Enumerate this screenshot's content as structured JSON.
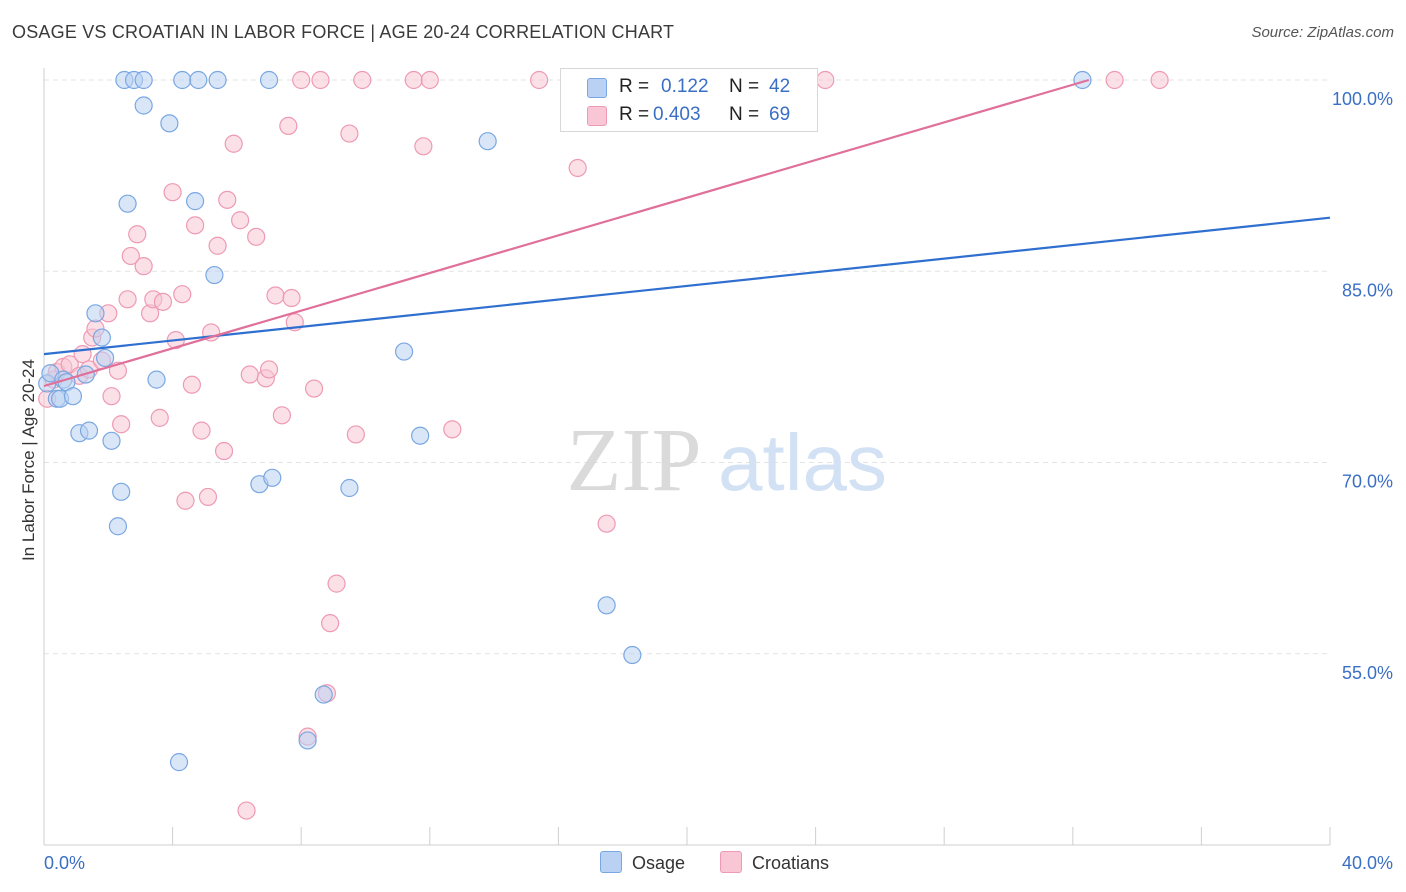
{
  "title": "OSAGE VS CROATIAN IN LABOR FORCE | AGE 20-24 CORRELATION CHART",
  "source": "Source: ZipAtlas.com",
  "watermark": "ZIPatlas",
  "colors": {
    "osage_fill": "#b9d2f3",
    "osage_stroke": "#7aa7e2",
    "osage_line": "#2f6fcf",
    "croatians_fill": "#f8c6d4",
    "croatians_stroke": "#ee9ab3",
    "croatians_line": "#e0709a",
    "tick_label": "#3b6fc4",
    "grid": "#e3e3e3"
  },
  "legend": {
    "r_label": "R =",
    "n_label": "N =",
    "osage": {
      "r": "0.122",
      "n": "42"
    },
    "croatians": {
      "r": "0.403",
      "n": "69"
    }
  },
  "bottom_legend": {
    "osage": "Osage",
    "croatians": "Croatians"
  },
  "chart_data": {
    "type": "scatter",
    "xlabel": "",
    "ylabel": "In Labor Force | Age 20-24",
    "xlim": [
      0.0,
      40.0
    ],
    "ylim": [
      40.0,
      100.0
    ],
    "x_tick_labels": [
      "0.0%",
      "40.0%"
    ],
    "y_ticks": [
      100.0,
      85.0,
      70.0,
      55.0
    ],
    "y_tick_labels": [
      "100.0%",
      "85.0%",
      "70.0%",
      "55.0%"
    ],
    "grid": true,
    "legend_position": "top-center",
    "series": [
      {
        "name": "Osage",
        "r": 0.122,
        "n": 42,
        "trend": {
          "x": [
            0.0,
            40.0
          ],
          "y": [
            78.5,
            89.2
          ]
        },
        "points": [
          [
            0.1,
            76.2
          ],
          [
            0.2,
            77.0
          ],
          [
            0.4,
            75.0
          ],
          [
            0.5,
            75.0
          ],
          [
            0.6,
            76.5
          ],
          [
            0.7,
            76.3
          ],
          [
            0.9,
            75.2
          ],
          [
            1.1,
            72.3
          ],
          [
            1.3,
            76.9
          ],
          [
            1.4,
            72.5
          ],
          [
            1.6,
            81.7
          ],
          [
            1.8,
            79.8
          ],
          [
            1.9,
            78.2
          ],
          [
            2.1,
            71.7
          ],
          [
            2.3,
            65.0
          ],
          [
            2.4,
            67.7
          ],
          [
            2.6,
            90.3
          ],
          [
            2.5,
            100.0
          ],
          [
            2.8,
            100.0
          ],
          [
            3.1,
            100.0
          ],
          [
            3.1,
            98.0
          ],
          [
            3.5,
            76.5
          ],
          [
            3.9,
            96.6
          ],
          [
            4.2,
            46.5
          ],
          [
            4.3,
            100.0
          ],
          [
            4.7,
            90.5
          ],
          [
            4.8,
            100.0
          ],
          [
            5.3,
            84.7
          ],
          [
            5.4,
            100.0
          ],
          [
            6.7,
            68.3
          ],
          [
            7.0,
            100.0
          ],
          [
            7.1,
            68.8
          ],
          [
            8.2,
            48.2
          ],
          [
            8.7,
            51.8
          ],
          [
            9.5,
            68.0
          ],
          [
            11.2,
            78.7
          ],
          [
            11.7,
            72.1
          ],
          [
            13.8,
            95.2
          ],
          [
            17.5,
            58.8
          ],
          [
            18.3,
            54.9
          ],
          [
            23.5,
            100.0
          ],
          [
            32.3,
            100.0
          ]
        ]
      },
      {
        "name": "Croatians",
        "r": 0.403,
        "n": 69,
        "trend": {
          "x": [
            0.0,
            32.5
          ],
          "y": [
            76.0,
            100.0
          ]
        },
        "points": [
          [
            0.1,
            75.0
          ],
          [
            0.3,
            76.5
          ],
          [
            0.4,
            77.1
          ],
          [
            0.6,
            77.5
          ],
          [
            0.8,
            77.7
          ],
          [
            1.1,
            76.8
          ],
          [
            1.2,
            78.5
          ],
          [
            1.4,
            77.3
          ],
          [
            1.5,
            79.8
          ],
          [
            1.6,
            80.5
          ],
          [
            1.8,
            78.0
          ],
          [
            2.0,
            81.7
          ],
          [
            2.1,
            75.2
          ],
          [
            2.3,
            77.2
          ],
          [
            2.4,
            73.0
          ],
          [
            2.6,
            82.8
          ],
          [
            2.7,
            86.2
          ],
          [
            2.9,
            87.9
          ],
          [
            3.1,
            85.4
          ],
          [
            3.3,
            81.7
          ],
          [
            3.4,
            82.8
          ],
          [
            3.6,
            73.5
          ],
          [
            3.7,
            82.6
          ],
          [
            4.0,
            91.2
          ],
          [
            4.1,
            79.6
          ],
          [
            4.3,
            83.2
          ],
          [
            4.4,
            67.0
          ],
          [
            4.6,
            76.1
          ],
          [
            4.7,
            88.6
          ],
          [
            4.9,
            72.5
          ],
          [
            5.1,
            67.3
          ],
          [
            5.2,
            80.2
          ],
          [
            5.4,
            87.0
          ],
          [
            5.6,
            70.9
          ],
          [
            5.7,
            90.6
          ],
          [
            5.9,
            95.0
          ],
          [
            6.1,
            89.0
          ],
          [
            6.3,
            42.7
          ],
          [
            6.4,
            76.9
          ],
          [
            6.6,
            87.7
          ],
          [
            6.9,
            76.6
          ],
          [
            7.0,
            77.3
          ],
          [
            7.2,
            83.1
          ],
          [
            7.4,
            73.7
          ],
          [
            7.6,
            96.4
          ],
          [
            7.7,
            82.9
          ],
          [
            7.8,
            81.0
          ],
          [
            8.0,
            100.0
          ],
          [
            8.2,
            48.5
          ],
          [
            8.4,
            75.8
          ],
          [
            8.6,
            100.0
          ],
          [
            8.8,
            51.9
          ],
          [
            8.9,
            57.4
          ],
          [
            9.1,
            60.5
          ],
          [
            9.5,
            95.8
          ],
          [
            9.7,
            72.2
          ],
          [
            9.9,
            100.0
          ],
          [
            11.5,
            100.0
          ],
          [
            11.8,
            94.8
          ],
          [
            12.0,
            100.0
          ],
          [
            12.7,
            72.6
          ],
          [
            15.4,
            100.0
          ],
          [
            16.6,
            93.1
          ],
          [
            17.5,
            65.2
          ],
          [
            22.4,
            100.0
          ],
          [
            23.4,
            100.0
          ],
          [
            24.3,
            100.0
          ],
          [
            33.3,
            100.0
          ],
          [
            34.7,
            100.0
          ]
        ]
      }
    ]
  }
}
